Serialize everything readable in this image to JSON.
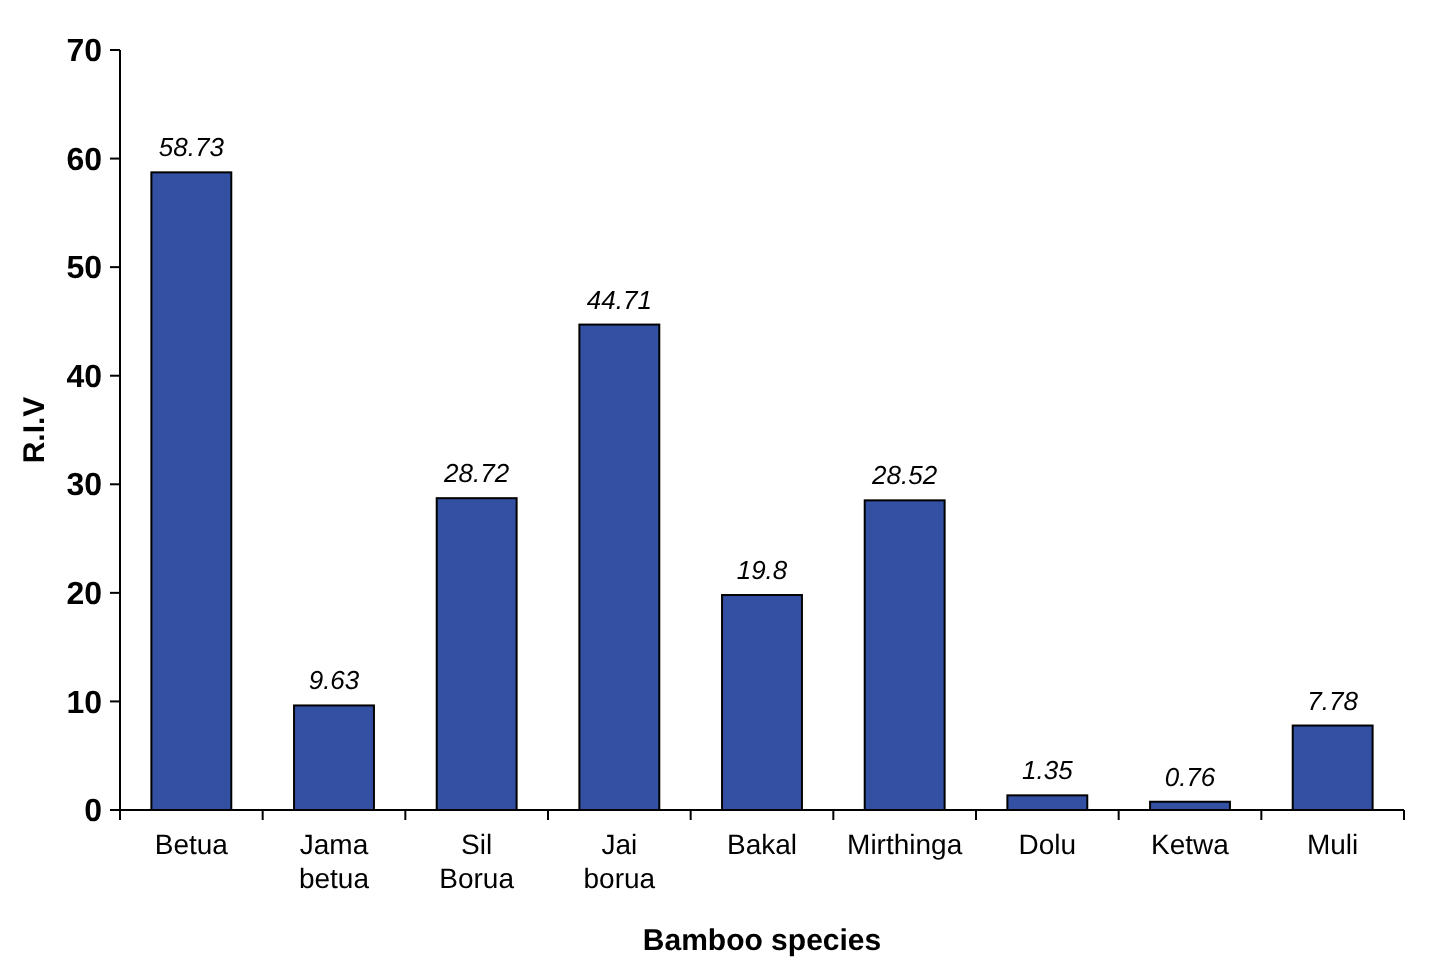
{
  "chart_data": {
    "type": "bar",
    "xlabel": "Bamboo species",
    "ylabel": "R.I.V",
    "categories": [
      "Betua",
      "Jama betua",
      "Sil Borua",
      "Jai borua",
      "Bakal",
      "Mirthinga",
      "Dolu",
      "Ketwa",
      "Muli"
    ],
    "values": [
      58.73,
      9.63,
      28.72,
      44.71,
      19.8,
      28.52,
      1.35,
      0.76,
      7.78
    ],
    "color": "#3350a3",
    "ylim": [
      0,
      70
    ],
    "yticks": [
      0,
      10,
      20,
      30,
      40,
      50,
      60,
      70
    ],
    "data_labels": true,
    "grid": false
  }
}
